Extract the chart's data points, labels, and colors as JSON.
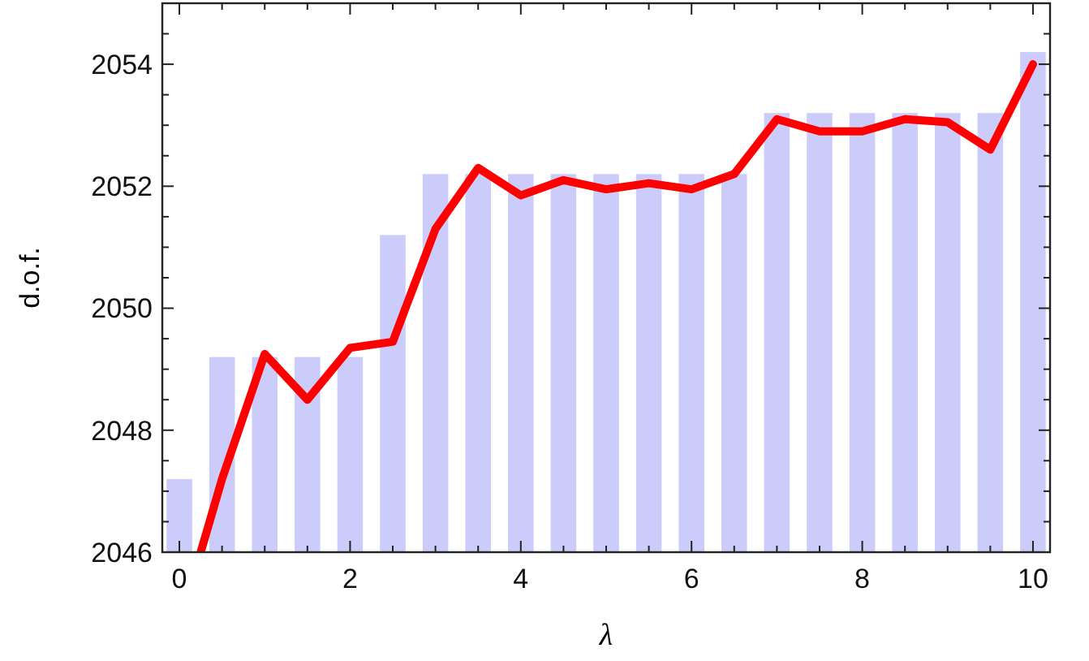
{
  "chart_data": {
    "type": "bar",
    "xlabel": "λ",
    "ylabel": "d.o.f.",
    "x": [
      0,
      0.5,
      1,
      1.5,
      2,
      2.5,
      3,
      3.5,
      4,
      4.5,
      5,
      5.5,
      6,
      6.5,
      7,
      7.5,
      8,
      8.5,
      9,
      9.5,
      10
    ],
    "series": [
      {
        "color": "#ccccfa",
        "values": [
          2047.2,
          2049.2,
          2049.2,
          2049.2,
          2049.2,
          2051.2,
          2052.2,
          2052.2,
          2052.2,
          2052.2,
          2052.2,
          2052.2,
          2052.2,
          2052.2,
          2053.2,
          2053.2,
          2053.2,
          2053.2,
          2053.2,
          2053.2,
          2054.2
        ]
      },
      {
        "type": "line",
        "color": "#ff0000",
        "x": [
          0.25,
          0.5,
          1,
          1.5,
          2,
          2.5,
          3,
          3.5,
          4,
          4.5,
          5,
          5.5,
          6,
          6.5,
          7,
          7.5,
          8,
          8.5,
          9,
          9.5,
          10
        ],
        "values": [
          2046,
          2047.2,
          2049.25,
          2048.5,
          2049.35,
          2049.45,
          2051.3,
          2052.3,
          2051.85,
          2052.1,
          2051.95,
          2052.05,
          2051.95,
          2052.2,
          2053.1,
          2052.9,
          2052.9,
          2053.1,
          2053.05,
          2052.6,
          2054
        ]
      }
    ],
    "xlim": [
      -0.2,
      10.2
    ],
    "ylim": [
      2046,
      2055
    ],
    "xticks": [
      0,
      {
        "value": 0.5,
        "label": null
      },
      {
        "value": 1,
        "label": null
      },
      {
        "value": 1.5,
        "label": null
      },
      2,
      {
        "value": 2.5,
        "label": null
      },
      {
        "value": 3,
        "label": null
      },
      {
        "value": 3.5,
        "label": null
      },
      4,
      {
        "value": 4.5,
        "label": null
      },
      {
        "value": 5,
        "label": null
      },
      {
        "value": 5.5,
        "label": null
      },
      6,
      {
        "value": 6.5,
        "label": null
      },
      {
        "value": 7,
        "label": null
      },
      {
        "value": 7.5,
        "label": null
      },
      8,
      {
        "value": 8.5,
        "label": null
      },
      {
        "value": 9,
        "label": null
      },
      {
        "value": 9.5,
        "label": null
      },
      10
    ],
    "yticks": [
      2046,
      {
        "value": 2046.5,
        "label": null
      },
      {
        "value": 2047,
        "label": null
      },
      {
        "value": 2047.5,
        "label": null
      },
      2048,
      {
        "value": 2048.5,
        "label": null
      },
      {
        "value": 2049,
        "label": null
      },
      {
        "value": 2049.5,
        "label": null
      },
      2050,
      {
        "value": 2050.5,
        "label": null
      },
      {
        "value": 2051,
        "label": null
      },
      {
        "value": 2051.5,
        "label": null
      },
      2052,
      {
        "value": 2052.5,
        "label": null
      },
      {
        "value": 2053,
        "label": null
      },
      {
        "value": 2053.5,
        "label": null
      },
      2054,
      {
        "value": 2054.5,
        "label": null
      },
      {
        "value": 2055,
        "label": null
      }
    ],
    "grid": false
  }
}
